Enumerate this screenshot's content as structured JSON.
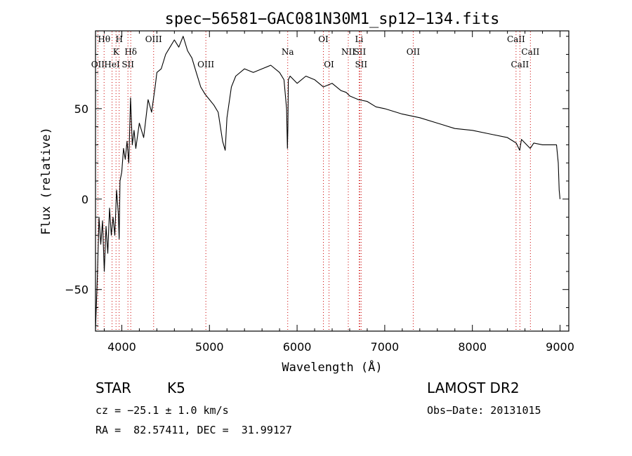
{
  "chart_data": {
    "type": "line",
    "title": "spec−56581−GAC081N30M1_sp12−134.fits",
    "xlabel": "Wavelength (Å)",
    "ylabel": "Flux (relative)",
    "xlim": [
      3700,
      9100
    ],
    "ylim": [
      -73,
      93
    ],
    "xticks": [
      4000,
      5000,
      6000,
      7000,
      8000,
      9000
    ],
    "yticks": [
      -50,
      0,
      50
    ],
    "ytick_labels": [
      "−50",
      "0",
      "50"
    ],
    "grid": false,
    "legend": "none",
    "series": [
      {
        "x": [
          3700,
          3720,
          3740,
          3760,
          3780,
          3800,
          3820,
          3840,
          3860,
          3880,
          3900,
          3920,
          3940,
          3960,
          3970,
          3980,
          4000,
          4020,
          4040,
          4060,
          4080,
          4100,
          4120,
          4140,
          4160,
          4200,
          4250,
          4300,
          4340,
          4380,
          4400,
          4450,
          4500,
          4550,
          4600,
          4650,
          4700,
          4750,
          4800,
          4850,
          4900,
          4950,
          5000,
          5050,
          5100,
          5150,
          5180,
          5200,
          5250,
          5300,
          5400,
          5500,
          5600,
          5700,
          5800,
          5850,
          5880,
          5890,
          5895,
          5900,
          5920,
          6000,
          6100,
          6200,
          6300,
          6400,
          6500,
          6560,
          6600,
          6700,
          6800,
          6900,
          7000,
          7200,
          7400,
          7600,
          7800,
          8000,
          8200,
          8400,
          8500,
          8540,
          8560,
          8600,
          8660,
          8700,
          8800,
          8900,
          8960,
          8980,
          8990,
          9000
        ],
        "y": [
          -72,
          -45,
          -10,
          -25,
          -12,
          -40,
          -15,
          -30,
          -5,
          -20,
          -10,
          -20,
          5,
          -8,
          -22,
          10,
          15,
          28,
          22,
          32,
          20,
          56,
          30,
          38,
          28,
          42,
          34,
          55,
          48,
          62,
          70,
          72,
          80,
          84,
          88,
          84,
          90,
          82,
          78,
          70,
          62,
          58,
          55,
          52,
          48,
          32,
          27,
          45,
          62,
          68,
          72,
          70,
          72,
          74,
          70,
          66,
          50,
          28,
          40,
          66,
          68,
          64,
          68,
          66,
          62,
          64,
          60,
          59,
          57,
          55,
          54,
          51,
          50,
          47,
          45,
          42,
          39,
          38,
          36,
          34,
          31,
          27,
          33,
          31,
          28,
          31,
          30,
          30,
          30,
          20,
          5,
          0
        ],
        "color": "#000000"
      }
    ],
    "spectral_lines": [
      {
        "label": "Hθ",
        "wavelength": 3798,
        "row": 0
      },
      {
        "label": "H",
        "wavelength": 3970,
        "row": 0
      },
      {
        "label": "K",
        "wavelength": 3934,
        "row": 1
      },
      {
        "label": "Hδ",
        "wavelength": 4102,
        "row": 1
      },
      {
        "label": "OII",
        "wavelength": 3727,
        "row": 2
      },
      {
        "label": "HeI",
        "wavelength": 3889,
        "row": 2
      },
      {
        "label": "SII",
        "wavelength": 4070,
        "row": 2
      },
      {
        "label": "OIII",
        "wavelength": 4363,
        "row": 0
      },
      {
        "label": "OIII",
        "wavelength": 4959,
        "row": 2
      },
      {
        "label": "Na",
        "wavelength": 5893,
        "row": 1
      },
      {
        "label": "OI",
        "wavelength": 6300,
        "row": 0
      },
      {
        "label": "OI",
        "wavelength": 6364,
        "row": 2
      },
      {
        "label": "Li",
        "wavelength": 6708,
        "row": 0
      },
      {
        "label": "NII",
        "wavelength": 6584,
        "row": 1
      },
      {
        "label": "SII",
        "wavelength": 6716,
        "row": 1
      },
      {
        "label": "SII",
        "wavelength": 6731,
        "row": 2
      },
      {
        "label": "OII",
        "wavelength": 7325,
        "row": 1
      },
      {
        "label": "CaII",
        "wavelength": 8498,
        "row": 0
      },
      {
        "label": "CaII",
        "wavelength": 8662,
        "row": 1
      },
      {
        "label": "CaII",
        "wavelength": 8542,
        "row": 2
      }
    ],
    "line_marker_color": "#cc0000"
  },
  "info": {
    "object_class": "STAR",
    "subclass": "K5",
    "survey": "LAMOST DR2",
    "redshift": "cz = −25.1 ± 1.0 km/s",
    "obs_date": "Obs−Date: 20131015",
    "coords": "RA =  82.57411, DEC =  31.99127"
  }
}
